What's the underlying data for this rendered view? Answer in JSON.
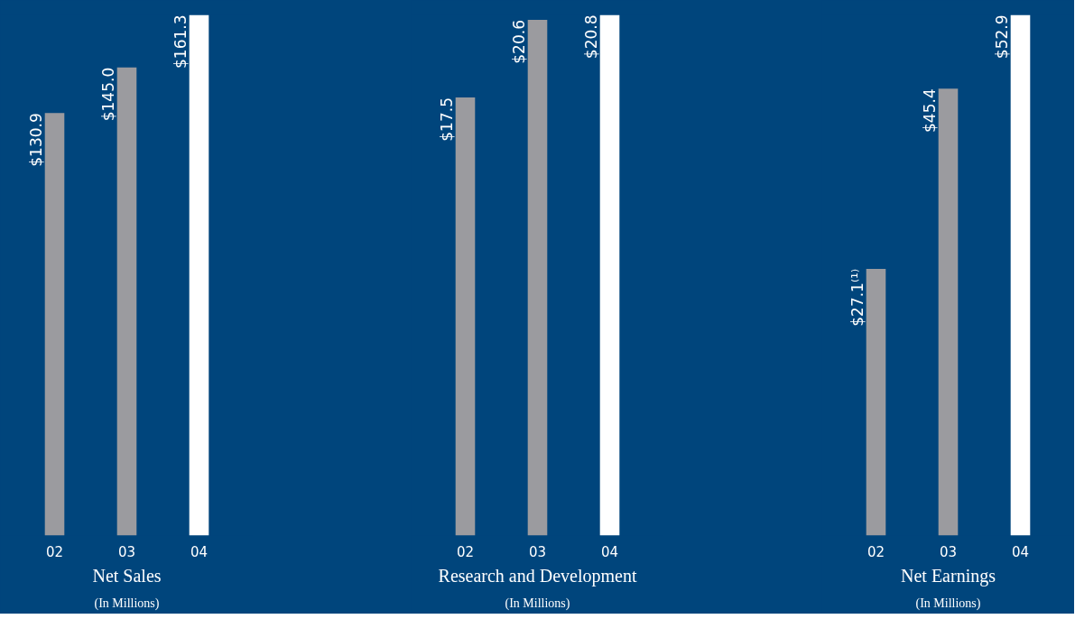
{
  "chart_data": [
    {
      "type": "bar",
      "title": "Net Sales",
      "subtitle": "(In Millions)",
      "categories": [
        "02",
        "03",
        "04"
      ],
      "values": [
        130.9,
        145.0,
        161.3
      ],
      "colors": [
        "#9b9b9f",
        "#9b9b9f",
        "#ffffff"
      ],
      "value_labels": [
        "$130.9",
        "$145.0",
        "$161.3"
      ]
    },
    {
      "type": "bar",
      "title": "Research and Development",
      "subtitle": "(In Millions)",
      "categories": [
        "02",
        "03",
        "04"
      ],
      "values": [
        17.5,
        20.6,
        20.8
      ],
      "colors": [
        "#9b9b9f",
        "#9b9b9f",
        "#ffffff"
      ],
      "value_labels": [
        "$17.5",
        "$20.6",
        "$20.8"
      ]
    },
    {
      "type": "bar",
      "title": "Net Earnings",
      "subtitle": "(In Millions)",
      "categories": [
        "02",
        "03",
        "04"
      ],
      "values": [
        27.1,
        45.4,
        52.9
      ],
      "colors": [
        "#9b9b9f",
        "#9b9b9f",
        "#ffffff"
      ],
      "value_labels": [
        "$27.1⁽¹⁾",
        "$45.4",
        "$52.9"
      ]
    }
  ]
}
